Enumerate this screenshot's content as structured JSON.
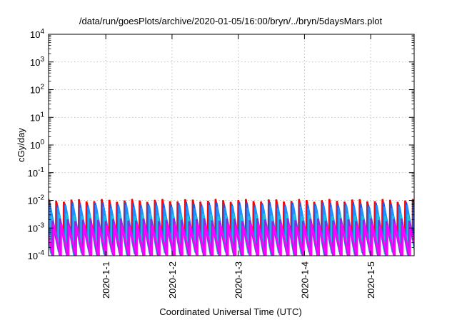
{
  "chart_data": {
    "type": "line",
    "title": "/data/run/goesPlots/archive/2020-01-05/16:00/bryn/../bryn/5daysMars.plot",
    "xlabel": "Coordinated Universal Time (UTC)",
    "ylabel": "cGy/day",
    "yscale": "log",
    "ylim": [
      0.0001,
      10000
    ],
    "y_ticks": [
      {
        "base": "10",
        "exp": "-4"
      },
      {
        "base": "10",
        "exp": "-3"
      },
      {
        "base": "10",
        "exp": "-2"
      },
      {
        "base": "10",
        "exp": "-1"
      },
      {
        "base": "10",
        "exp": "0"
      },
      {
        "base": "10",
        "exp": "1"
      },
      {
        "base": "10",
        "exp": "2"
      },
      {
        "base": "10",
        "exp": "3"
      },
      {
        "base": "10",
        "exp": "4"
      }
    ],
    "xlim": [
      "2019-12-31T03:15",
      "2020-01-05T15:45"
    ],
    "x_ticks": [
      "2020-1-1",
      "2020-1-2",
      "2020-1-3",
      "2020-1-4",
      "2020-1-5"
    ],
    "grid": true,
    "sawtooth_period_hours": 2.75,
    "series": [
      {
        "color": "#ff0000",
        "peak": 0.01,
        "trough": 0.00045,
        "phase_hours": 0.0
      },
      {
        "color": "#2a56d6",
        "peak": 0.0078,
        "trough": 0.0003,
        "phase_hours": 0.35
      },
      {
        "color": "#1e90ff",
        "peak": 0.006,
        "trough": 0.00022,
        "phase_hours": 0.65
      },
      {
        "color": "#1fbfd8",
        "peak": 0.003,
        "trough": 0.00012,
        "phase_hours": 1.0
      },
      {
        "color": "#8a2be2",
        "peak": 0.002,
        "trough": 9.5e-05,
        "phase_hours": 1.4
      },
      {
        "color": "#ff00ff",
        "peak": 0.0013,
        "trough": 9e-05,
        "phase_hours": 1.8
      }
    ]
  }
}
